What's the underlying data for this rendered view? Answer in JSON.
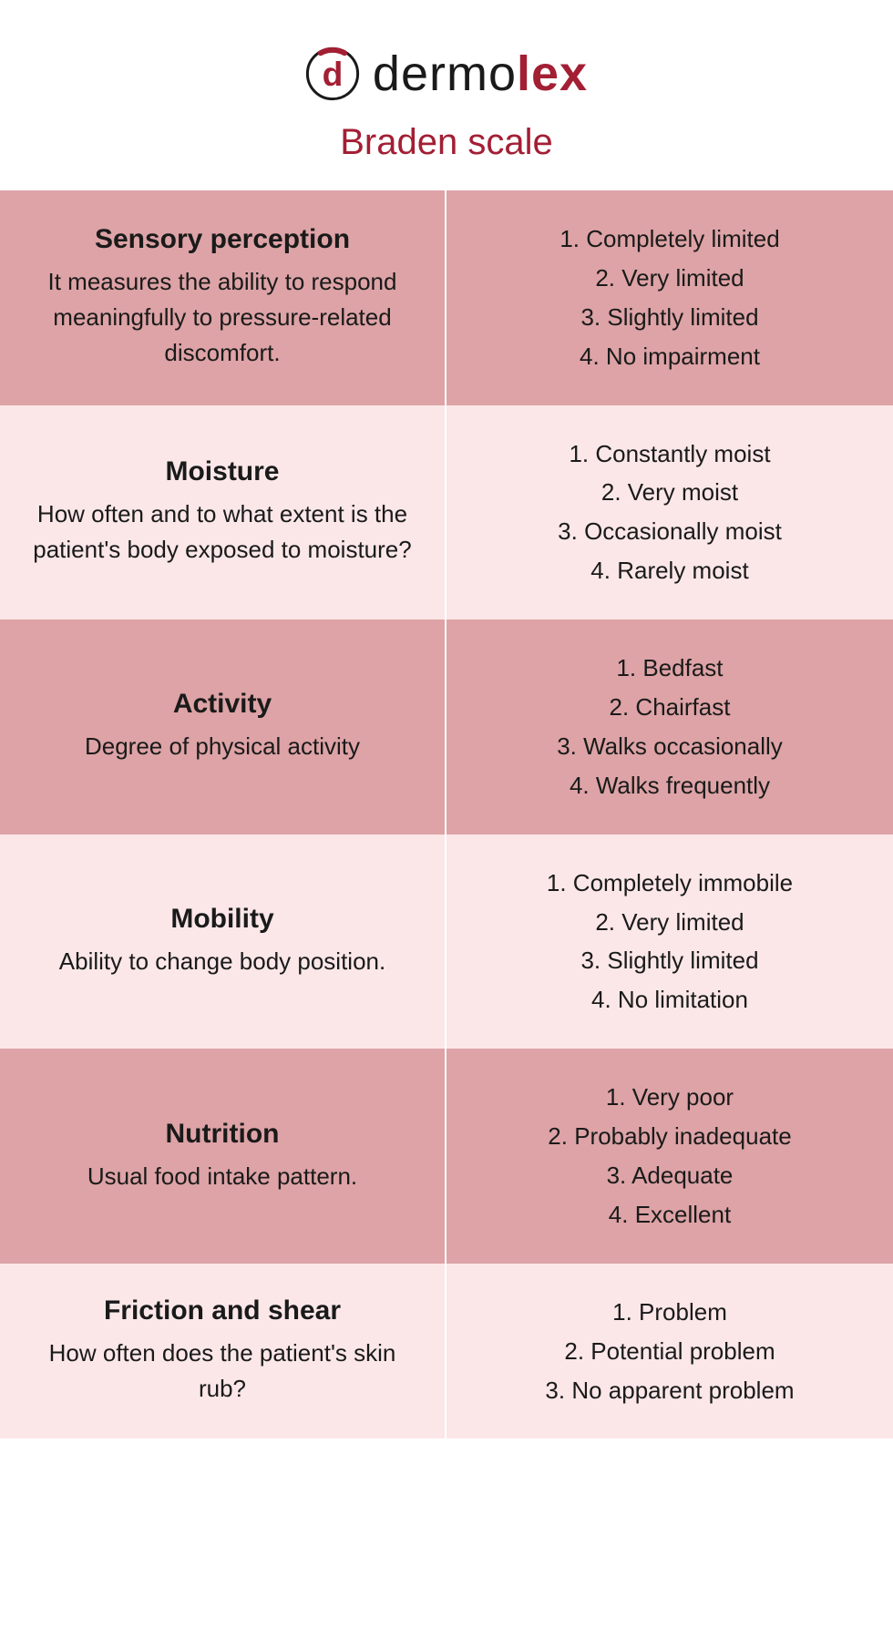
{
  "colors": {
    "accent": "#a31f34",
    "row_dark_bg": "#dda3a6",
    "row_light_bg": "#fbe7e8",
    "text": "#1a1a1a",
    "divider": "#ffffff",
    "page_bg": "#ffffff"
  },
  "typography": {
    "brand_fontsize": 54,
    "subtitle_fontsize": 40,
    "category_title_fontsize": 30,
    "body_fontsize": 26,
    "font_family": "Arial"
  },
  "header": {
    "brand_part1": "dermo",
    "brand_part2": "lex",
    "subtitle": "Braden scale",
    "logo_letter": "d"
  },
  "rows": [
    {
      "shade": "dark",
      "title": "Sensory perception",
      "desc": "It measures the ability to respond meaningfully to pressure-related discomfort.",
      "options": [
        "1. Completely limited",
        "2. Very limited",
        "3. Slightly limited",
        "4. No impairment"
      ]
    },
    {
      "shade": "light",
      "title": "Moisture",
      "desc": "How often and to what extent is the patient's body exposed to moisture?",
      "options": [
        "1. Constantly moist",
        "2. Very moist",
        "3. Occasionally moist",
        "4. Rarely moist"
      ]
    },
    {
      "shade": "dark",
      "title": "Activity",
      "desc": "Degree of physical activity",
      "options": [
        "1. Bedfast",
        "2. Chairfast",
        "3. Walks occasionally",
        "4. Walks frequently"
      ]
    },
    {
      "shade": "light",
      "title": "Mobility",
      "desc": "Ability to change body position.",
      "options": [
        "1. Completely immobile",
        "2. Very limited",
        "3. Slightly limited",
        "4. No limitation"
      ]
    },
    {
      "shade": "dark",
      "title": "Nutrition",
      "desc": "Usual food intake pattern.",
      "options": [
        "1. Very poor",
        "2. Probably inadequate",
        "3. Adequate",
        "4. Excellent"
      ]
    },
    {
      "shade": "light",
      "title": "Friction and shear",
      "desc": "How often does the patient's skin rub?",
      "options": [
        "1. Problem",
        "2. Potential problem",
        "3. No apparent problem"
      ]
    }
  ]
}
